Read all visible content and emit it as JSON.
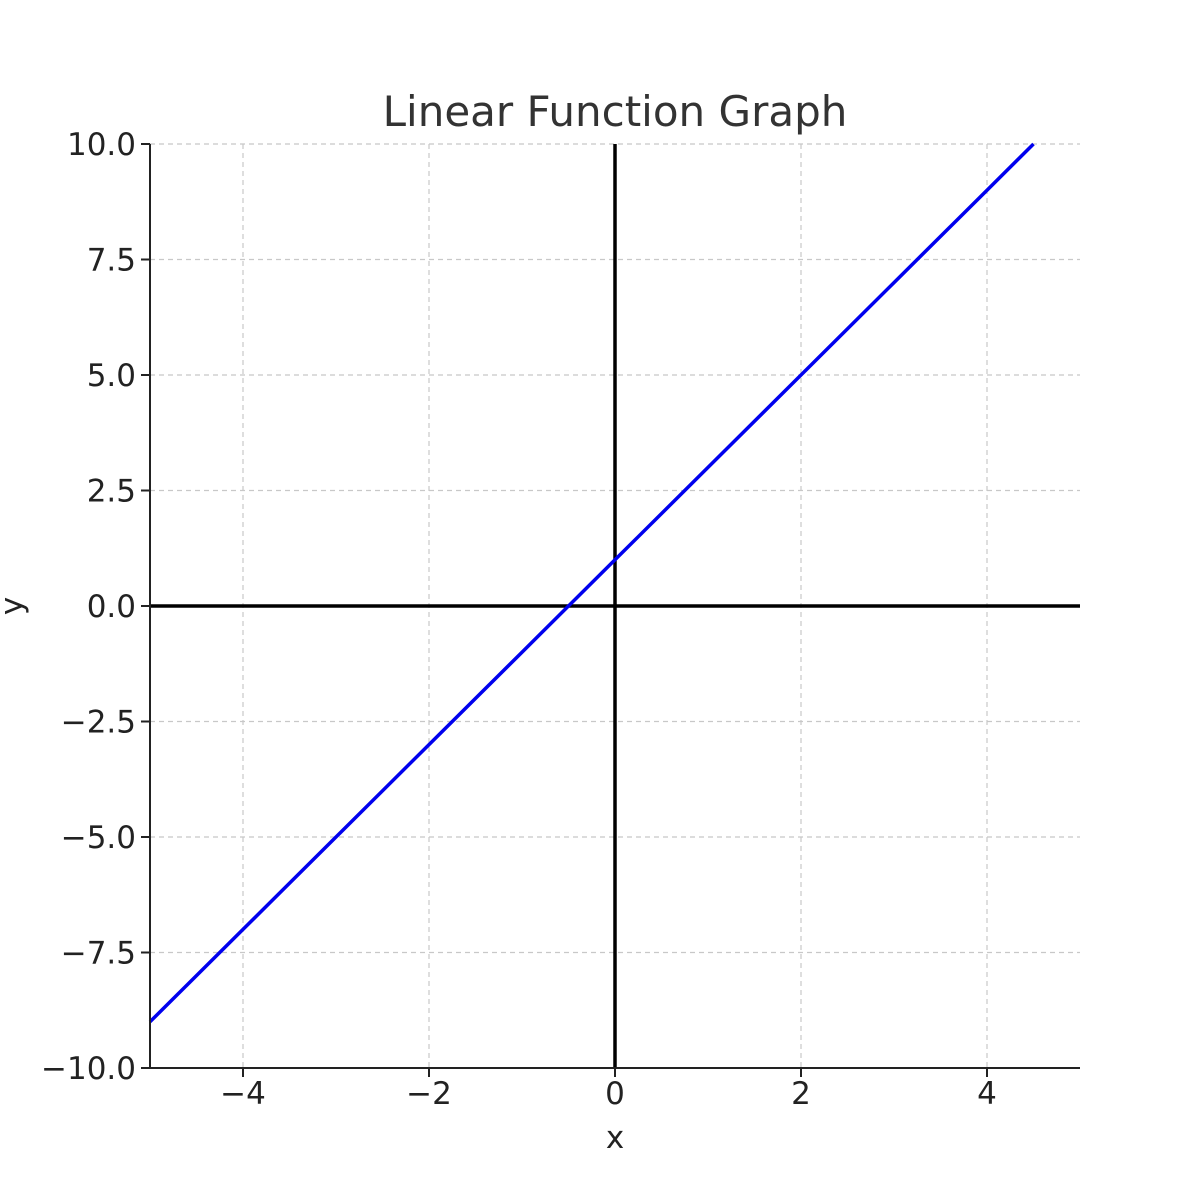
{
  "chart_data": {
    "type": "line",
    "title": "Linear Function Graph",
    "xlabel": "x",
    "ylabel": "y",
    "xlim": [
      -5,
      5
    ],
    "ylim": [
      -10,
      10
    ],
    "grid": true,
    "x_ticks": [
      -4,
      -2,
      0,
      2,
      4
    ],
    "x_tick_labels": [
      "−4",
      "−2",
      "0",
      "2",
      "4"
    ],
    "y_ticks": [
      -10,
      -7.5,
      -5,
      -2.5,
      0,
      2.5,
      5,
      7.5,
      10
    ],
    "y_tick_labels": [
      "−10.0",
      "−7.5",
      "−5.0",
      "−2.5",
      "0.0",
      "2.5",
      "5.0",
      "7.5",
      "10.0"
    ],
    "series": [
      {
        "color": "#0000ee",
        "x": [
          -5,
          -4,
          -3,
          -2,
          -1,
          0,
          1,
          2,
          3,
          4,
          4.5
        ],
        "y": [
          -9,
          -7,
          -5,
          -3,
          -1,
          1,
          3,
          5,
          7,
          9,
          10
        ]
      }
    ],
    "reference_lines": {
      "x0": true,
      "y0": true,
      "color": "#000000"
    }
  }
}
